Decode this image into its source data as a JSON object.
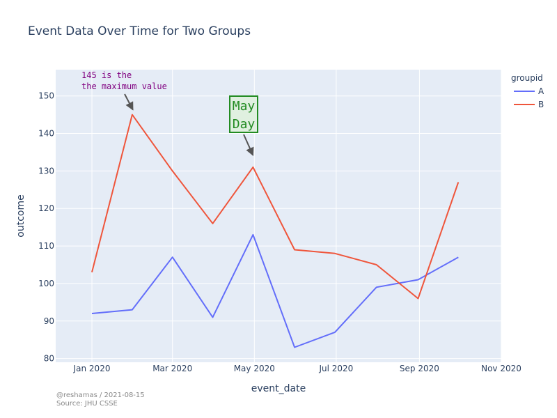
{
  "chart_data": {
    "type": "line",
    "title": "Event Data Over Time for Two Groups",
    "xlabel": "event_date",
    "ylabel": "outcome",
    "x_range": [
      "2019-12-05",
      "2020-11-01"
    ],
    "ylim": [
      79,
      157
    ],
    "x_ticks": [
      {
        "date": "2020-01-01",
        "label": "Jan 2020"
      },
      {
        "date": "2020-03-01",
        "label": "Mar 2020"
      },
      {
        "date": "2020-05-01",
        "label": "May 2020"
      },
      {
        "date": "2020-07-01",
        "label": "Jul 2020"
      },
      {
        "date": "2020-09-01",
        "label": "Sep 2020"
      },
      {
        "date": "2020-11-01",
        "label": "Nov 2020"
      }
    ],
    "y_ticks": [
      80,
      90,
      100,
      110,
      120,
      130,
      140,
      150
    ],
    "x": [
      "2020-01-01",
      "2020-01-31",
      "2020-03-01",
      "2020-03-31",
      "2020-04-30",
      "2020-05-31",
      "2020-06-30",
      "2020-07-31",
      "2020-08-31",
      "2020-09-30"
    ],
    "series": [
      {
        "name": "A",
        "color": "#636efa",
        "values": [
          92,
          93,
          107,
          91,
          113,
          83,
          87,
          99,
          101,
          107
        ]
      },
      {
        "name": "B",
        "color": "#ef553b",
        "values": [
          103,
          145,
          130,
          116,
          131,
          109,
          108,
          105,
          96,
          127
        ]
      }
    ],
    "legend": {
      "title": "groupid",
      "position": "top-right"
    },
    "grid": true,
    "plot_bg": "#e5ecf6",
    "annotations": [
      {
        "lines": [
          "145 is the",
          "the maximum value"
        ],
        "color": "#800080",
        "arrow_to": {
          "x": "2020-01-31",
          "y": 145
        }
      },
      {
        "lines": [
          "May",
          "Day"
        ],
        "color": "#228b22",
        "box_fill": "#e0f0e0",
        "arrow_to": {
          "x": "2020-04-30",
          "y": 134
        }
      }
    ]
  },
  "footer": {
    "line1": "@reshamas / 2021-08-15",
    "line2": "Source: JHU CSSE"
  }
}
